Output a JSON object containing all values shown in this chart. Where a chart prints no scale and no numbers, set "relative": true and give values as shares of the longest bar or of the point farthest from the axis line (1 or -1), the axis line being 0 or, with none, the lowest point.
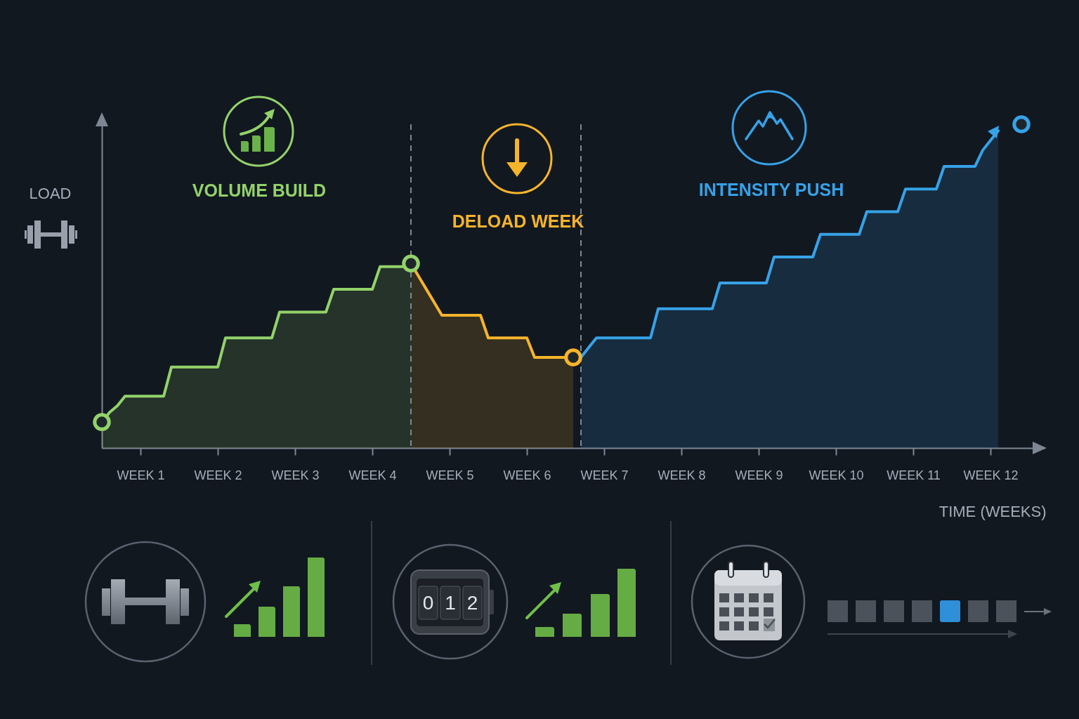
{
  "chart_data": {
    "type": "area",
    "xlabel": "TIME (WEEKS)",
    "ylabel": "LOAD",
    "relative": true,
    "categories": [
      null,
      null,
      null,
      null,
      null,
      "WEEK 1",
      null,
      null,
      null,
      null,
      null,
      null,
      null,
      null,
      null,
      "WEEK 2",
      null,
      null,
      null,
      null,
      null,
      null,
      null,
      null,
      null,
      "WEEK 3",
      null,
      null,
      null,
      null,
      null,
      null,
      null,
      null,
      null,
      "WEEK 4",
      null,
      null,
      null,
      null,
      null,
      null,
      null,
      null,
      null,
      "WEEK 5",
      null,
      null,
      null,
      null,
      null,
      null,
      null,
      null,
      null,
      "WEEK 6",
      null,
      null,
      null,
      null,
      null,
      null,
      null,
      null,
      null,
      "WEEK 7",
      null,
      null,
      null,
      null,
      null,
      null,
      null,
      null,
      null,
      "WEEK 8",
      null,
      null,
      null,
      null,
      null,
      null,
      null,
      null,
      null,
      "WEEK 9",
      null,
      null,
      null,
      null,
      null,
      null,
      null,
      null,
      null,
      "WEEK 10",
      null,
      null,
      null,
      null,
      null,
      null,
      null,
      null,
      null,
      "WEEK 11",
      null,
      null,
      null,
      null,
      null,
      null,
      null,
      null,
      null,
      "WEEK 12",
      null,
      null,
      null,
      null,
      null,
      null,
      null
    ],
    "series": [
      {
        "name": "VOLUME BUILD",
        "color": "#93d26a",
        "values": [
          0.08,
          0.11,
          0.13,
          0.16,
          0.16,
          0.16,
          0.16,
          0.16,
          0.16,
          0.25,
          0.25,
          0.25,
          0.25,
          0.25,
          0.25,
          0.25,
          0.34,
          0.34,
          0.34,
          0.34,
          0.34,
          0.34,
          0.34,
          0.42,
          0.42,
          0.42,
          0.42,
          0.42,
          0.42,
          0.42,
          0.49,
          0.49,
          0.49,
          0.49,
          0.49,
          0.49,
          0.56,
          0.56,
          0.56,
          0.56,
          0.57,
          null,
          null,
          null,
          null,
          null,
          null,
          null,
          null,
          null,
          null,
          null,
          null,
          null,
          null,
          null,
          null,
          null,
          null,
          null,
          null,
          null,
          null,
          null,
          null,
          null,
          null,
          null,
          null,
          null,
          null,
          null,
          null,
          null,
          null,
          null,
          null,
          null,
          null,
          null,
          null,
          null,
          null,
          null,
          null,
          null,
          null,
          null,
          null,
          null,
          null,
          null,
          null,
          null,
          null,
          null,
          null,
          null,
          null,
          null,
          null,
          null,
          null,
          null,
          null,
          null,
          null,
          null,
          null,
          null,
          null,
          null,
          null,
          null,
          null,
          null,
          null,
          null,
          null,
          null,
          null,
          null,
          null
        ]
      },
      {
        "name": "DELOAD WEEK",
        "color": "#f6b42b",
        "values": [
          null,
          null,
          null,
          null,
          null,
          null,
          null,
          null,
          null,
          null,
          null,
          null,
          null,
          null,
          null,
          null,
          null,
          null,
          null,
          null,
          null,
          null,
          null,
          null,
          null,
          null,
          null,
          null,
          null,
          null,
          null,
          null,
          null,
          null,
          null,
          null,
          null,
          null,
          null,
          null,
          0.57,
          0.53,
          0.49,
          0.45,
          0.41,
          0.41,
          0.41,
          0.41,
          0.41,
          0.41,
          0.34,
          0.34,
          0.34,
          0.34,
          0.34,
          0.34,
          0.28,
          0.28,
          0.28,
          0.28,
          0.28,
          0.28,
          null,
          null,
          null,
          null,
          null,
          null,
          null,
          null,
          null,
          null,
          null,
          null,
          null,
          null,
          null,
          null,
          null,
          null,
          null,
          null,
          null,
          null,
          null,
          null,
          null,
          null,
          null,
          null,
          null,
          null,
          null,
          null,
          null,
          null,
          null,
          null,
          null,
          null,
          null,
          null,
          null,
          null,
          null,
          null,
          null,
          null,
          null,
          null,
          null,
          null,
          null,
          null,
          null,
          null,
          null,
          null,
          null,
          null,
          null,
          null,
          null
        ]
      },
      {
        "name": "INTENSITY PUSH",
        "color": "#36a2e8",
        "values": [
          null,
          null,
          null,
          null,
          null,
          null,
          null,
          null,
          null,
          null,
          null,
          null,
          null,
          null,
          null,
          null,
          null,
          null,
          null,
          null,
          null,
          null,
          null,
          null,
          null,
          null,
          null,
          null,
          null,
          null,
          null,
          null,
          null,
          null,
          null,
          null,
          null,
          null,
          null,
          null,
          null,
          null,
          null,
          null,
          null,
          null,
          null,
          null,
          null,
          null,
          null,
          null,
          null,
          null,
          null,
          null,
          null,
          null,
          null,
          null,
          null,
          null,
          0.28,
          0.31,
          0.34,
          0.34,
          0.34,
          0.34,
          0.34,
          0.34,
          0.34,
          0.34,
          0.43,
          0.43,
          0.43,
          0.43,
          0.43,
          0.43,
          0.43,
          0.43,
          0.51,
          0.51,
          0.51,
          0.51,
          0.51,
          0.51,
          0.51,
          0.59,
          0.59,
          0.59,
          0.59,
          0.59,
          0.59,
          0.66,
          0.66,
          0.66,
          0.66,
          0.66,
          0.66,
          0.73,
          0.73,
          0.73,
          0.73,
          0.73,
          0.8,
          0.8,
          0.8,
          0.8,
          0.8,
          0.87,
          0.87,
          0.87,
          0.87,
          0.87,
          0.92,
          0.95,
          0.98,
          null,
          null,
          null,
          null,
          null,
          null
        ]
      },
      {
        "type": "scatter",
        "marker": "circle",
        "color": "#93d26a",
        "values": [
          0.08,
          null,
          null,
          null,
          null,
          null,
          null,
          null,
          null,
          null,
          null,
          null,
          null,
          null,
          null,
          null,
          null,
          null,
          null,
          null,
          null,
          null,
          null,
          null,
          null,
          null,
          null,
          null,
          null,
          null,
          null,
          null,
          null,
          null,
          null,
          null,
          null,
          null,
          null,
          null,
          0.57,
          null,
          null,
          null,
          null,
          null,
          null,
          null,
          null,
          null,
          null,
          null,
          null,
          null,
          null,
          null,
          null,
          null,
          null,
          null,
          null,
          null,
          null,
          null,
          null,
          null,
          null,
          null,
          null,
          null,
          null,
          null,
          null,
          null,
          null,
          null,
          null,
          null,
          null,
          null,
          null,
          null,
          null,
          null,
          null,
          null,
          null,
          null,
          null,
          null,
          null,
          null,
          null,
          null,
          null,
          null,
          null,
          null,
          null,
          null,
          null,
          null,
          null,
          null,
          null,
          null,
          null,
          null,
          null,
          null,
          null,
          null,
          null,
          null,
          null,
          null,
          null,
          null,
          null,
          null,
          null,
          null,
          null
        ]
      },
      {
        "type": "scatter",
        "marker": "circle",
        "color": "#f6b42b",
        "values": [
          null,
          null,
          null,
          null,
          null,
          null,
          null,
          null,
          null,
          null,
          null,
          null,
          null,
          null,
          null,
          null,
          null,
          null,
          null,
          null,
          null,
          null,
          null,
          null,
          null,
          null,
          null,
          null,
          null,
          null,
          null,
          null,
          null,
          null,
          null,
          null,
          null,
          null,
          null,
          null,
          null,
          null,
          null,
          null,
          null,
          null,
          null,
          null,
          null,
          null,
          null,
          null,
          null,
          null,
          null,
          null,
          null,
          null,
          null,
          null,
          null,
          0.28,
          null,
          null,
          null,
          null,
          null,
          null,
          null,
          null,
          null,
          null,
          null,
          null,
          null,
          null,
          null,
          null,
          null,
          null,
          null,
          null,
          null,
          null,
          null,
          null,
          null,
          null,
          null,
          null,
          null,
          null,
          null,
          null,
          null,
          null,
          null,
          null,
          null,
          null,
          null,
          null,
          null,
          null,
          null,
          null,
          null,
          null,
          null,
          null,
          null,
          null,
          null,
          null,
          null,
          null,
          null,
          null,
          null,
          null,
          null,
          null,
          null
        ]
      },
      {
        "type": "scatter",
        "marker": "circle",
        "color": "#36a2e8",
        "values": [
          null,
          null,
          null,
          null,
          null,
          null,
          null,
          null,
          null,
          null,
          null,
          null,
          null,
          null,
          null,
          null,
          null,
          null,
          null,
          null,
          null,
          null,
          null,
          null,
          null,
          null,
          null,
          null,
          null,
          null,
          null,
          null,
          null,
          null,
          null,
          null,
          null,
          null,
          null,
          null,
          null,
          null,
          null,
          null,
          null,
          null,
          null,
          null,
          null,
          null,
          null,
          null,
          null,
          null,
          null,
          null,
          null,
          null,
          null,
          null,
          null,
          null,
          null,
          null,
          null,
          null,
          null,
          null,
          null,
          null,
          null,
          null,
          null,
          null,
          null,
          null,
          null,
          null,
          null,
          null,
          null,
          null,
          null,
          null,
          null,
          null,
          null,
          null,
          null,
          null,
          null,
          null,
          null,
          null,
          null,
          null,
          null,
          null,
          null,
          null,
          null,
          null,
          null,
          null,
          null,
          null,
          null,
          null,
          null,
          null,
          null,
          null,
          null,
          null,
          null,
          null,
          null,
          null,
          null,
          1.0,
          null,
          null,
          null
        ]
      }
    ],
    "annotations": [
      "012"
    ]
  }
}
